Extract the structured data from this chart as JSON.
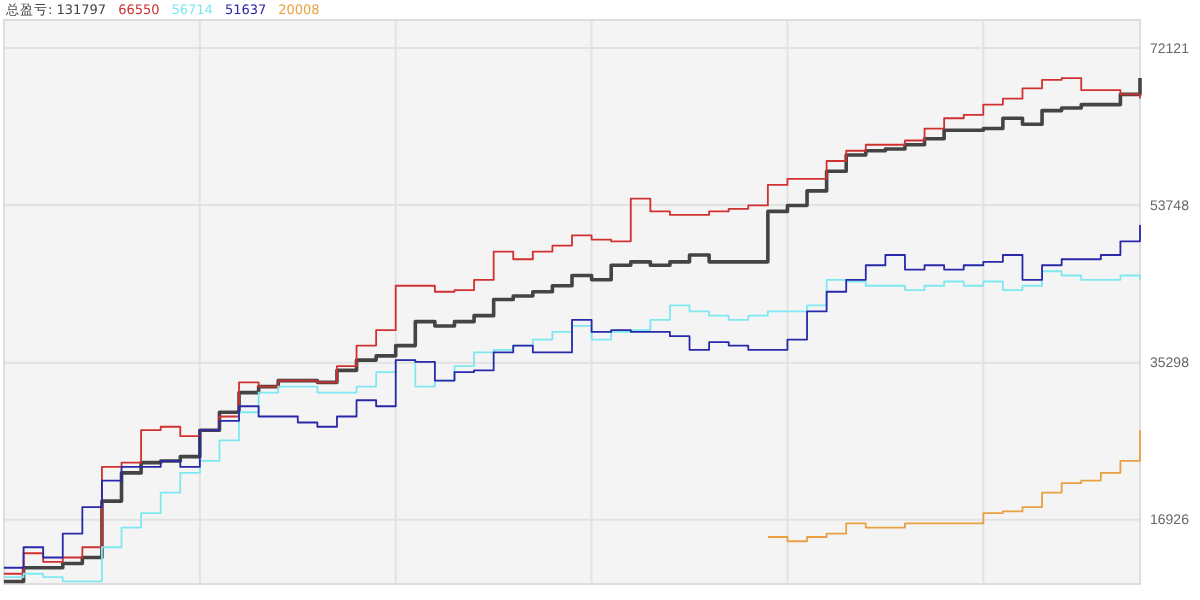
{
  "chart_data": {
    "type": "step",
    "categories": [
      null,
      null,
      null,
      null,
      null,
      null,
      null,
      null,
      null,
      null,
      null,
      null,
      null,
      null,
      null,
      null,
      null,
      null,
      null,
      null,
      null,
      null,
      null,
      null,
      null,
      null,
      null,
      null,
      null,
      null,
      null,
      null,
      null,
      null,
      null,
      null,
      null,
      null,
      null,
      null,
      null,
      null,
      null,
      null,
      null,
      null,
      null,
      null,
      null,
      null,
      null,
      null,
      null,
      null,
      null,
      null,
      null,
      null,
      null
    ],
    "series": [
      {
        "name": "总盈亏: 131797",
        "color": "#444444",
        "values": [
          9700,
          11300,
          11300,
          11800,
          12500,
          19100,
          22400,
          23600,
          23800,
          24300,
          27400,
          29500,
          31800,
          32500,
          33200,
          33200,
          33000,
          34400,
          35600,
          36100,
          37300,
          40100,
          39600,
          40100,
          40800,
          42700,
          43100,
          43600,
          44300,
          45500,
          45000,
          46700,
          47100,
          46700,
          47100,
          47900,
          47100,
          47100,
          47100,
          53000,
          53700,
          55400,
          57700,
          59600,
          60100,
          60300,
          60800,
          61500,
          62500,
          62500,
          62700,
          63900,
          63200,
          64800,
          65100,
          65500,
          65500,
          66700,
          68600
        ]
      },
      {
        "name": "66550",
        "color": "#d03030",
        "values": [
          10600,
          13000,
          12000,
          12500,
          13700,
          23100,
          23600,
          27400,
          27800,
          26700,
          27400,
          29000,
          33000,
          32500,
          33200,
          33200,
          33000,
          34900,
          37300,
          39100,
          44300,
          44300,
          43600,
          43800,
          45000,
          48300,
          47400,
          48300,
          49000,
          50200,
          49700,
          49500,
          54500,
          53000,
          52600,
          52600,
          53000,
          53300,
          53700,
          56100,
          56800,
          56800,
          58900,
          60100,
          60800,
          60800,
          61300,
          62700,
          63900,
          64300,
          65500,
          66200,
          67400,
          68400,
          68600,
          67200,
          67200,
          66700,
          66200
        ]
      },
      {
        "name": "56714",
        "color": "#7ee8f0",
        "values": [
          10200,
          10600,
          10200,
          9700,
          9700,
          13700,
          16000,
          17700,
          20100,
          22400,
          23800,
          26200,
          29500,
          31800,
          32500,
          32500,
          31800,
          31800,
          32500,
          34200,
          35600,
          32500,
          33200,
          34900,
          36500,
          36800,
          37300,
          38000,
          38900,
          39600,
          38000,
          38900,
          39100,
          40300,
          42000,
          41300,
          40800,
          40300,
          40800,
          41300,
          41300,
          42000,
          45000,
          44800,
          44300,
          44300,
          43800,
          44300,
          44800,
          44300,
          44800,
          43800,
          44300,
          46000,
          45500,
          45000,
          45000,
          45500,
          45000
        ]
      },
      {
        "name": "51637",
        "color": "#2828a8",
        "values": [
          11300,
          13700,
          12500,
          15300,
          18400,
          21500,
          23100,
          23100,
          23800,
          23100,
          27400,
          28500,
          30200,
          29000,
          29000,
          28300,
          27800,
          29000,
          30900,
          30200,
          35600,
          35400,
          33200,
          34200,
          34400,
          36500,
          37300,
          36500,
          36500,
          40300,
          38900,
          39100,
          38900,
          38900,
          38400,
          36800,
          37700,
          37300,
          36800,
          36800,
          38000,
          41300,
          43600,
          45000,
          46700,
          47900,
          46200,
          46700,
          46200,
          46700,
          47100,
          47900,
          45000,
          46700,
          47400,
          47400,
          47900,
          49500,
          51400
        ]
      },
      {
        "name": "20008",
        "color": "#e8a040",
        "values": [
          null,
          null,
          null,
          null,
          null,
          null,
          null,
          null,
          null,
          null,
          null,
          null,
          null,
          null,
          null,
          null,
          null,
          null,
          null,
          null,
          null,
          null,
          null,
          null,
          null,
          null,
          null,
          null,
          null,
          null,
          null,
          null,
          null,
          null,
          null,
          null,
          null,
          null,
          null,
          14900,
          14400,
          14900,
          15300,
          16500,
          16000,
          16000,
          16500,
          16500,
          16500,
          16500,
          17700,
          17900,
          18400,
          20100,
          21200,
          21500,
          22400,
          23800,
          27400
        ]
      }
    ],
    "ylim": [
      9400,
      75400
    ],
    "yticks": [
      16926,
      35298,
      53748,
      72121
    ],
    "grid": true,
    "legend": "top left"
  }
}
